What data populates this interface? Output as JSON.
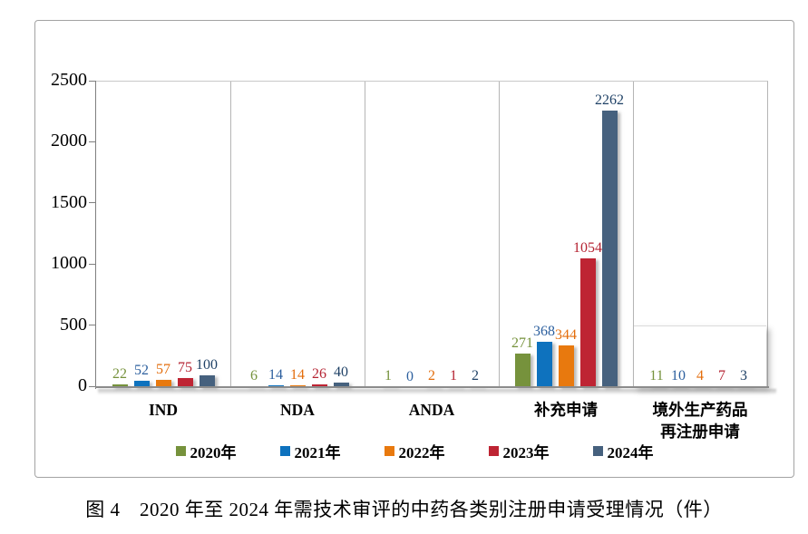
{
  "chart_data": {
    "type": "bar",
    "caption": "图 4　2020 年至 2024 年需技术审评的中药各类别注册申请受理情况（件）",
    "categories": [
      "IND",
      "NDA",
      "ANDA",
      "补充申请",
      "境外生产药品\n再注册申请"
    ],
    "series": [
      {
        "name": "2020年",
        "color": "#76923C",
        "label_color": "#76923C",
        "values": [
          22,
          6,
          1,
          271,
          11
        ]
      },
      {
        "name": "2021年",
        "color": "#0E72BE",
        "label_color": "#2C5F9E",
        "values": [
          52,
          14,
          0,
          368,
          10
        ]
      },
      {
        "name": "2022年",
        "color": "#E8790E",
        "label_color": "#E36D0C",
        "values": [
          57,
          14,
          2,
          344,
          4
        ]
      },
      {
        "name": "2023年",
        "color": "#BE2433",
        "label_color": "#B52433",
        "values": [
          75,
          26,
          1,
          1054,
          7
        ]
      },
      {
        "name": "2024年",
        "color": "#46617E",
        "label_color": "#1F4166",
        "values": [
          100,
          40,
          2,
          2262,
          3
        ]
      }
    ],
    "y_axis": {
      "min": 0,
      "max": 2500,
      "step": 500,
      "tick_labels": [
        "0",
        "500",
        "1000",
        "1500",
        "2000",
        "2500"
      ]
    },
    "legend_position": "bottom",
    "grid": "off",
    "data_labels": "outside-end"
  }
}
